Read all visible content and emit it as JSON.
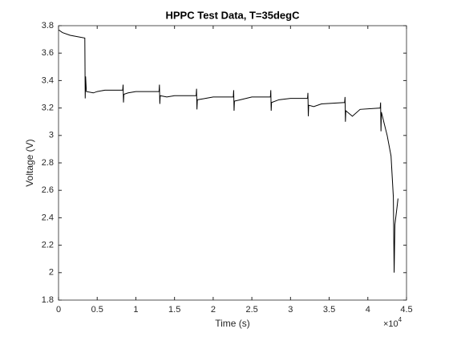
{
  "chart_data": {
    "type": "line",
    "title": "HPPC Test Data, T=35degC",
    "x_label": "Time (s)",
    "y_label": "Voltage (V)",
    "x_multiplier": "×10",
    "x_exponent": "4",
    "xlim": [
      0,
      4.5
    ],
    "xticks": [
      0,
      0.5,
      1,
      1.5,
      2,
      2.5,
      3,
      3.5,
      4,
      4.5
    ],
    "ylim": [
      1.8,
      3.8
    ],
    "yticks": [
      1.8,
      2,
      2.2,
      2.4,
      2.6,
      2.8,
      3,
      3.2,
      3.4,
      3.6,
      3.8
    ],
    "grid": false,
    "series": [
      {
        "color": "#000000",
        "x": [
          0,
          0.05,
          0.15,
          0.34,
          0.345,
          0.35,
          0.36,
          0.45,
          0.5,
          0.6,
          0.83,
          0.835,
          0.84,
          0.845,
          0.9,
          1.0,
          1.3,
          1.305,
          1.31,
          1.315,
          1.4,
          1.5,
          1.78,
          1.785,
          1.79,
          1.795,
          1.9,
          2.0,
          2.26,
          2.265,
          2.27,
          2.275,
          2.35,
          2.5,
          2.74,
          2.745,
          2.75,
          2.755,
          2.85,
          3.0,
          3.22,
          3.225,
          3.23,
          3.235,
          3.3,
          3.4,
          3.7,
          3.705,
          3.71,
          3.715,
          3.8,
          3.9,
          4.16,
          4.165,
          4.17,
          4.175,
          4.25,
          4.3,
          4.33,
          4.34,
          4.35,
          4.38,
          4.39
        ],
        "values": [
          3.77,
          3.75,
          3.73,
          3.71,
          3.27,
          3.43,
          3.32,
          3.31,
          3.32,
          3.33,
          3.33,
          3.37,
          3.24,
          3.3,
          3.31,
          3.32,
          3.32,
          3.37,
          3.23,
          3.29,
          3.28,
          3.29,
          3.29,
          3.34,
          3.19,
          3.26,
          3.27,
          3.28,
          3.28,
          3.33,
          3.18,
          3.25,
          3.26,
          3.28,
          3.28,
          3.33,
          3.18,
          3.24,
          3.26,
          3.27,
          3.27,
          3.31,
          3.14,
          3.22,
          3.21,
          3.23,
          3.24,
          3.28,
          3.1,
          3.18,
          3.14,
          3.19,
          3.2,
          3.24,
          3.03,
          3.17,
          3.0,
          2.85,
          2.55,
          2.0,
          2.35,
          2.49,
          2.54
        ]
      }
    ]
  }
}
